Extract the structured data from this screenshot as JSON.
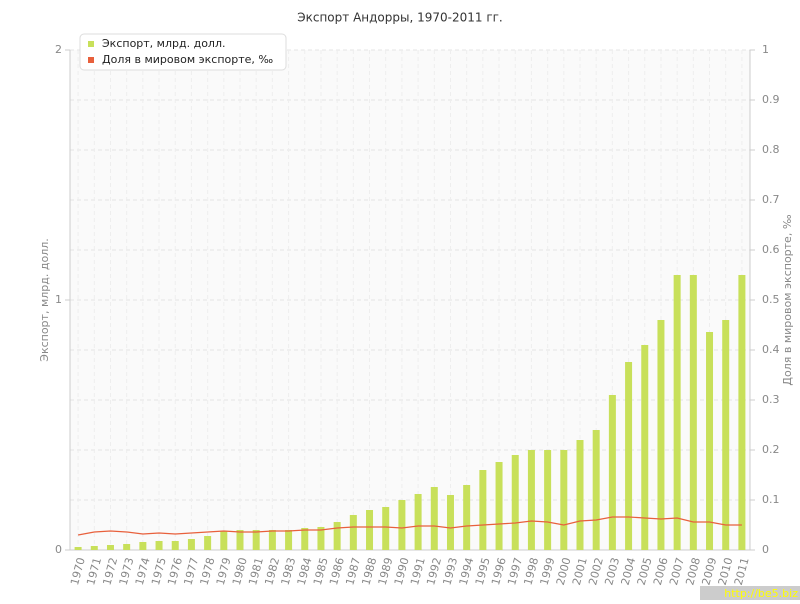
{
  "chart_data": {
    "type": "bar",
    "title": "Экспорт Андорры, 1970-2011 гг.",
    "y_label": "Экспорт, млрд. долл.",
    "y2_label": "Доля в мировом экспорте, ‰",
    "watermark": "http://be5.biz",
    "categories": [
      "1970",
      "1971",
      "1972",
      "1973",
      "1974",
      "1975",
      "1976",
      "1977",
      "1978",
      "1979",
      "1980",
      "1981",
      "1982",
      "1983",
      "1984",
      "1985",
      "1986",
      "1987",
      "1988",
      "1989",
      "1990",
      "1991",
      "1992",
      "1993",
      "1994",
      "1995",
      "1996",
      "1997",
      "1998",
      "1999",
      "2000",
      "2001",
      "2002",
      "2003",
      "2004",
      "2005",
      "2006",
      "2007",
      "2008",
      "2009",
      "2010",
      "2011"
    ],
    "series": [
      {
        "name": "Экспорт, млрд. долл.",
        "type": "bar",
        "color": "#c8e05a",
        "values": [
          0.012,
          0.016,
          0.02,
          0.024,
          0.032,
          0.036,
          0.036,
          0.044,
          0.056,
          0.076,
          0.08,
          0.08,
          0.08,
          0.08,
          0.088,
          0.092,
          0.112,
          0.14,
          0.16,
          0.172,
          0.2,
          0.224,
          0.252,
          0.22,
          0.26,
          0.32,
          0.352,
          0.38,
          0.4,
          0.4,
          0.4,
          0.44,
          0.48,
          0.62,
          0.752,
          0.82,
          0.92,
          1.1,
          1.1,
          0.872,
          0.92,
          1.1
        ]
      },
      {
        "name": "Доля в мировом экспорте, ‰",
        "type": "line",
        "axis": "y2",
        "color": "#e8603c",
        "values": [
          0.03,
          0.036,
          0.038,
          0.036,
          0.032,
          0.034,
          0.032,
          0.034,
          0.036,
          0.038,
          0.036,
          0.036,
          0.038,
          0.038,
          0.04,
          0.04,
          0.044,
          0.046,
          0.046,
          0.046,
          0.044,
          0.048,
          0.048,
          0.044,
          0.048,
          0.05,
          0.052,
          0.054,
          0.058,
          0.056,
          0.05,
          0.058,
          0.06,
          0.066,
          0.066,
          0.064,
          0.062,
          0.064,
          0.056,
          0.056,
          0.05,
          0.05
        ]
      }
    ],
    "ylim": [
      0,
      2
    ],
    "yticks": [
      0,
      1,
      2
    ],
    "y2lim": [
      0,
      1
    ],
    "y2ticks": [
      0,
      0.1,
      0.2,
      0.3,
      0.4,
      0.5,
      0.6,
      0.7,
      0.8,
      0.9,
      1
    ],
    "grid": true,
    "legend": "top-left"
  }
}
